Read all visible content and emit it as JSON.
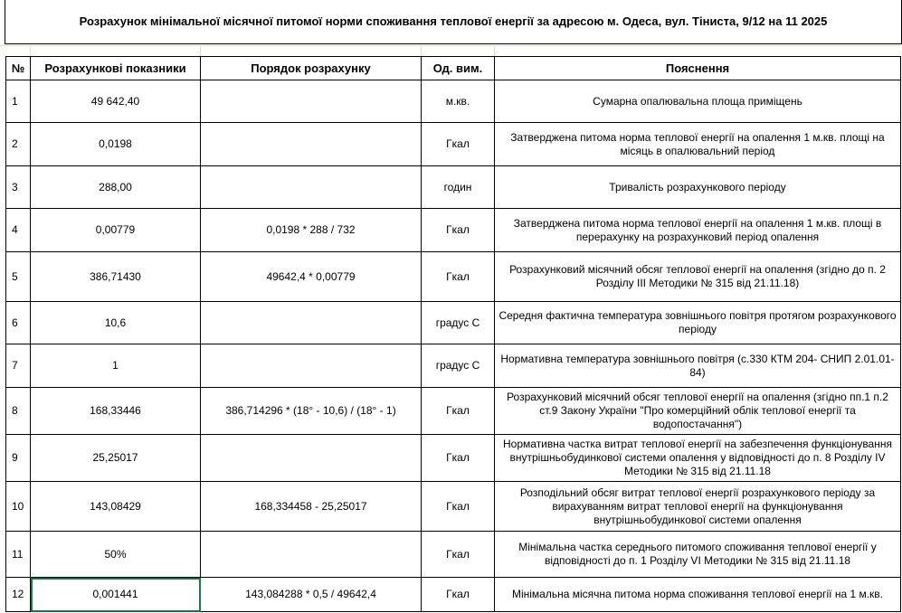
{
  "title": "Розрахунок мінімальної місячної питомої норми споживання теплової енергії за адресою м. Одеса, вул. Тіниста,  9/12 на 11 2025",
  "headers": [
    "№",
    "Розрахункові показники",
    "Порядок розрахунку",
    "Од. вим.",
    "Пояснення"
  ],
  "rows": [
    {
      "n": "1",
      "value": "49 642,40",
      "formula": "",
      "unit": "м.кв.",
      "note": "Сумарна опалювальна площа приміщень"
    },
    {
      "n": "2",
      "value": "0,0198",
      "formula": "",
      "unit": "Гкал",
      "note": "Затверджена питома норма теплової енергії на опалення 1 м.кв. площі на місяць в опалювальний період"
    },
    {
      "n": "3",
      "value": "288,00",
      "formula": "",
      "unit": "годин",
      "note": "Тривалість розрахункового періоду"
    },
    {
      "n": "4",
      "value": "0,00779",
      "formula": "0,0198 * 288 / 732",
      "unit": "Гкал",
      "note": "Затверджена питома норма теплової енергії на опалення 1 м.кв. площі в перерахунку на розрахунковий період опалення"
    },
    {
      "n": "5",
      "value": "386,71430",
      "formula": "49642,4 * 0,00779",
      "unit": "Гкал",
      "note": "Розрахунковий місячний обсяг теплової енергії на опалення (згідно до п. 2 Розділу ІІІ Методики № 315 від 21.11.18)"
    },
    {
      "n": "6",
      "value": "10,6",
      "formula": "",
      "unit": "градус С",
      "note": "Середня фактична температура зовнішнього повітря протягом розрахункового періоду"
    },
    {
      "n": "7",
      "value": "1",
      "formula": "",
      "unit": "градус С",
      "note": "Нормативна температура зовнішнього повітря (с.330 КТМ 204-  СНИП 2.01.01-84)"
    },
    {
      "n": "8",
      "value": "168,33446",
      "formula": "386,714296 * (18° - 10,6) / (18° - 1)",
      "unit": "Гкал",
      "note": "Розрахунковий місячний обсяг теплової енергії на опалення (згідно пп.1 п.2 ст.9 Закону України \"Про комерційний облік теплової енергії та водопостачання\")"
    },
    {
      "n": "9",
      "value": "25,25017",
      "formula": "",
      "unit": "Гкал",
      "note": "Нормативна частка витрат теплової енергії на забезпечення функціонування внутрішньобудинкової системи опалення у відповідності до п. 8 Розділу IV Методики № 315 від 21.11.18"
    },
    {
      "n": "10",
      "value": "143,08429",
      "formula": "168,334458 - 25,25017",
      "unit": "Гкал",
      "note": "Розподільний обсяг витрат теплової енергії розрахункового періоду за вирахуванням витрат теплової енергії на функціонування внутрішньобудинкової системи опалення"
    },
    {
      "n": "11",
      "value": "50%",
      "formula": "",
      "unit": "Гкал",
      "note": "Мінімальна частка середнього питомого споживання теплової енергії у відповідності до п. 1 Розділу VI Методики № 315 від 21.11.18"
    },
    {
      "n": "12",
      "value": "0,001441",
      "formula": "143,084288 * 0,5 / 49642,4",
      "unit": "Гкал",
      "note": "Мінімальна місячна питома норма споживання теплової енергії на 1 м.кв."
    }
  ]
}
